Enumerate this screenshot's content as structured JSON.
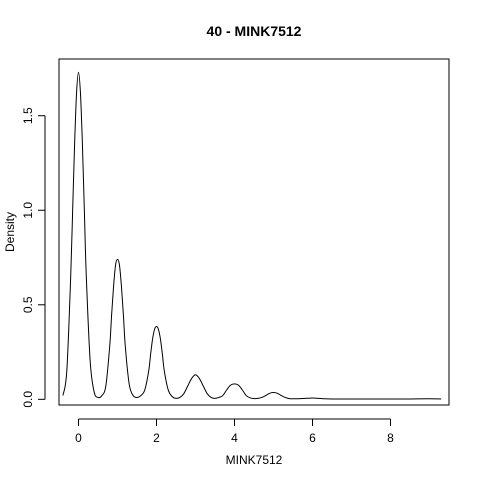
{
  "chart_data": {
    "type": "line",
    "title": "40 - MINK7512",
    "xlabel": "MINK7512",
    "ylabel": "Density",
    "xlim": [
      -0.5,
      9.5
    ],
    "ylim": [
      -0.03,
      1.8
    ],
    "x_ticks": [
      0,
      2,
      4,
      6,
      8
    ],
    "x_tick_labels": [
      "0",
      "2",
      "4",
      "6",
      "8"
    ],
    "y_ticks": [
      0.0,
      0.5,
      1.0,
      1.5
    ],
    "y_tick_labels": [
      "0.0",
      "0.5",
      "1.0",
      "1.5"
    ],
    "grid": false,
    "line_color": "#000000",
    "series": [
      {
        "x": [
          -0.4,
          -0.3,
          -0.2,
          -0.15,
          -0.1,
          -0.05,
          0,
          0.05,
          0.1,
          0.15,
          0.2,
          0.3,
          0.4,
          0.5,
          0.6,
          0.7,
          0.8,
          0.85,
          0.9,
          0.95,
          1.0,
          1.05,
          1.1,
          1.15,
          1.2,
          1.3,
          1.4,
          1.5,
          1.6,
          1.7,
          1.8,
          1.85,
          1.9,
          1.95,
          2.0,
          2.05,
          2.1,
          2.15,
          2.2,
          2.3,
          2.4,
          2.5,
          2.6,
          2.7,
          2.8,
          2.9,
          3.0,
          3.1,
          3.2,
          3.3,
          3.4,
          3.5,
          3.6,
          3.7,
          3.8,
          3.9,
          4.0,
          4.1,
          4.2,
          4.3,
          4.4,
          4.5,
          4.6,
          4.7,
          4.8,
          4.9,
          5.0,
          5.1,
          5.2,
          5.3,
          5.4,
          5.5,
          5.7,
          5.9,
          6.0,
          6.1,
          6.3,
          6.5,
          7.0,
          7.5,
          8.0,
          8.5,
          9.0,
          9.3
        ],
        "y": [
          0.02,
          0.15,
          0.65,
          1.0,
          1.35,
          1.62,
          1.73,
          1.62,
          1.35,
          1.0,
          0.65,
          0.2,
          0.04,
          0.01,
          0.02,
          0.07,
          0.28,
          0.45,
          0.6,
          0.71,
          0.74,
          0.71,
          0.6,
          0.45,
          0.28,
          0.08,
          0.02,
          0.01,
          0.02,
          0.05,
          0.15,
          0.24,
          0.32,
          0.37,
          0.385,
          0.37,
          0.32,
          0.24,
          0.15,
          0.05,
          0.015,
          0.005,
          0.01,
          0.03,
          0.07,
          0.11,
          0.13,
          0.11,
          0.07,
          0.03,
          0.01,
          0.005,
          0.01,
          0.02,
          0.05,
          0.075,
          0.082,
          0.075,
          0.05,
          0.02,
          0.008,
          0.004,
          0.005,
          0.01,
          0.02,
          0.032,
          0.036,
          0.032,
          0.02,
          0.01,
          0.004,
          0.003,
          0.004,
          0.006,
          0.007,
          0.006,
          0.003,
          0.002,
          0.002,
          0.002,
          0.002,
          0.002,
          0.003,
          0.002
        ]
      }
    ]
  }
}
